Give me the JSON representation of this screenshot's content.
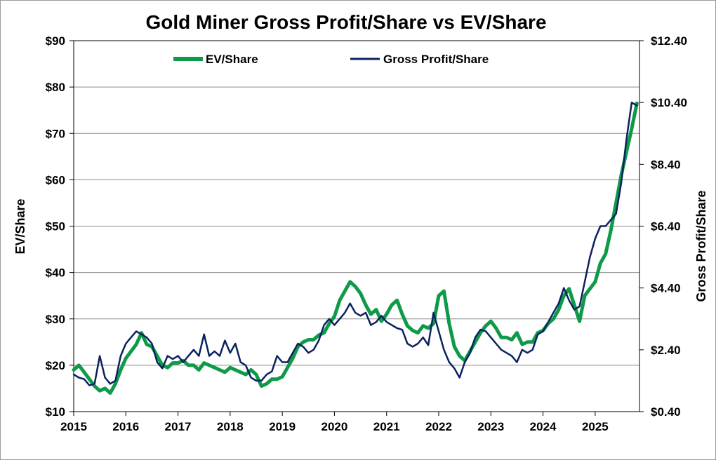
{
  "chart_data": {
    "type": "line",
    "title": "Gold Miner Gross Profit/Share vs EV/Share",
    "ylabel_left": "EV/Share",
    "ylabel_right": "Gross Profit/Share",
    "x_ticks": [
      "2015",
      "2016",
      "2017",
      "2018",
      "2019",
      "2020",
      "2021",
      "2022",
      "2023",
      "2024",
      "2025"
    ],
    "xlim": [
      2015,
      2025.85
    ],
    "y_left_ticks": [
      "$10",
      "$20",
      "$30",
      "$40",
      "$50",
      "$60",
      "$70",
      "$80",
      "$90"
    ],
    "y_left_range": [
      10,
      90
    ],
    "y_right_ticks": [
      "$0.40",
      "$2.40",
      "$4.40",
      "$6.40",
      "$8.40",
      "$10.40",
      "$12.40"
    ],
    "y_right_range": [
      0.4,
      12.4
    ],
    "grid": true,
    "legend_position": "top",
    "series": [
      {
        "name": "EV/Share",
        "axis": "left",
        "color": "#0e9a48",
        "x": [
          2015.0,
          2015.1,
          2015.2,
          2015.3,
          2015.4,
          2015.5,
          2015.6,
          2015.7,
          2015.8,
          2015.9,
          2016.0,
          2016.1,
          2016.2,
          2016.3,
          2016.4,
          2016.5,
          2016.6,
          2016.7,
          2016.8,
          2016.9,
          2017.0,
          2017.1,
          2017.2,
          2017.3,
          2017.4,
          2017.5,
          2017.6,
          2017.7,
          2017.8,
          2017.9,
          2018.0,
          2018.1,
          2018.2,
          2018.3,
          2018.4,
          2018.5,
          2018.6,
          2018.7,
          2018.8,
          2018.9,
          2019.0,
          2019.1,
          2019.2,
          2019.3,
          2019.4,
          2019.5,
          2019.6,
          2019.7,
          2019.8,
          2019.9,
          2020.0,
          2020.1,
          2020.2,
          2020.3,
          2020.4,
          2020.5,
          2020.6,
          2020.7,
          2020.8,
          2020.9,
          2021.0,
          2021.1,
          2021.2,
          2021.3,
          2021.4,
          2021.5,
          2021.6,
          2021.7,
          2021.8,
          2021.9,
          2022.0,
          2022.1,
          2022.2,
          2022.3,
          2022.4,
          2022.5,
          2022.6,
          2022.7,
          2022.8,
          2022.9,
          2023.0,
          2023.1,
          2023.2,
          2023.3,
          2023.4,
          2023.5,
          2023.6,
          2023.7,
          2023.8,
          2023.9,
          2024.0,
          2024.1,
          2024.2,
          2024.3,
          2024.4,
          2024.5,
          2024.6,
          2024.7,
          2024.8,
          2024.9,
          2025.0,
          2025.1,
          2025.2,
          2025.3,
          2025.4,
          2025.5,
          2025.6,
          2025.7,
          2025.8
        ],
        "values": [
          19,
          20,
          18.5,
          17,
          15.5,
          14.5,
          15,
          14,
          16,
          19,
          21.5,
          23,
          24.5,
          27,
          24.5,
          24,
          22,
          20,
          19.5,
          20.5,
          20.5,
          21,
          20,
          20,
          19,
          20.5,
          20,
          19.5,
          19,
          18.5,
          19.5,
          19,
          18.5,
          18,
          19,
          18,
          15.5,
          16,
          17,
          17,
          17.5,
          19.5,
          21.5,
          24,
          25,
          25.5,
          25.5,
          26.5,
          27,
          29,
          30.5,
          34,
          36,
          38,
          37,
          35.5,
          33,
          31,
          32,
          29.5,
          31,
          33,
          34,
          31,
          28.5,
          27.5,
          27,
          28.5,
          28,
          29,
          35,
          36,
          29,
          24,
          22,
          21,
          23,
          25,
          27,
          28.5,
          29.5,
          28,
          26,
          26,
          25.5,
          27,
          24.5,
          25,
          25,
          27,
          27.5,
          29,
          30,
          32,
          35,
          36.5,
          33,
          29.5,
          35,
          36.5,
          38,
          42,
          44,
          49,
          55,
          61,
          66,
          71,
          76.5
        ]
      },
      {
        "name": "Gross Profit/Share",
        "axis": "right",
        "color": "#0b2160",
        "x": [
          2015.0,
          2015.1,
          2015.2,
          2015.3,
          2015.4,
          2015.5,
          2015.6,
          2015.7,
          2015.8,
          2015.9,
          2016.0,
          2016.1,
          2016.2,
          2016.3,
          2016.4,
          2016.5,
          2016.6,
          2016.7,
          2016.8,
          2016.9,
          2017.0,
          2017.1,
          2017.2,
          2017.3,
          2017.4,
          2017.5,
          2017.6,
          2017.7,
          2017.8,
          2017.9,
          2018.0,
          2018.1,
          2018.2,
          2018.3,
          2018.4,
          2018.5,
          2018.6,
          2018.7,
          2018.8,
          2018.9,
          2019.0,
          2019.1,
          2019.2,
          2019.3,
          2019.4,
          2019.5,
          2019.6,
          2019.7,
          2019.8,
          2019.9,
          2020.0,
          2020.1,
          2020.2,
          2020.3,
          2020.4,
          2020.5,
          2020.6,
          2020.7,
          2020.8,
          2020.9,
          2021.0,
          2021.1,
          2021.2,
          2021.3,
          2021.4,
          2021.5,
          2021.6,
          2021.7,
          2021.8,
          2021.9,
          2022.0,
          2022.1,
          2022.2,
          2022.3,
          2022.4,
          2022.5,
          2022.6,
          2022.7,
          2022.8,
          2022.9,
          2023.0,
          2023.1,
          2023.2,
          2023.3,
          2023.4,
          2023.5,
          2023.6,
          2023.7,
          2023.8,
          2023.9,
          2024.0,
          2024.1,
          2024.2,
          2024.3,
          2024.4,
          2024.5,
          2024.6,
          2024.7,
          2024.8,
          2024.9,
          2025.0,
          2025.1,
          2025.2,
          2025.3,
          2025.4,
          2025.5,
          2025.6,
          2025.7,
          2025.8
        ],
        "values": [
          1.6,
          1.5,
          1.45,
          1.25,
          1.3,
          2.2,
          1.5,
          1.3,
          1.4,
          2.2,
          2.6,
          2.8,
          3.0,
          2.9,
          2.8,
          2.6,
          2.0,
          1.8,
          2.2,
          2.1,
          2.2,
          2.0,
          2.2,
          2.4,
          2.2,
          2.9,
          2.2,
          2.35,
          2.2,
          2.7,
          2.3,
          2.6,
          2.0,
          1.9,
          1.5,
          1.4,
          1.4,
          1.6,
          1.7,
          2.2,
          2.0,
          2.0,
          2.3,
          2.6,
          2.5,
          2.3,
          2.4,
          2.7,
          3.2,
          3.4,
          3.2,
          3.4,
          3.6,
          3.9,
          3.6,
          3.5,
          3.6,
          3.2,
          3.3,
          3.5,
          3.3,
          3.2,
          3.1,
          3.05,
          2.6,
          2.5,
          2.6,
          2.8,
          2.55,
          3.6,
          3.0,
          2.4,
          2.0,
          1.8,
          1.5,
          2.0,
          2.3,
          2.8,
          3.05,
          3.0,
          2.8,
          2.6,
          2.4,
          2.3,
          2.2,
          2.0,
          2.4,
          2.3,
          2.4,
          2.9,
          3.0,
          3.3,
          3.6,
          3.9,
          4.4,
          4.0,
          3.7,
          3.8,
          4.6,
          5.4,
          6.0,
          6.4,
          6.4,
          6.6,
          6.8,
          7.8,
          9.2,
          10.4,
          10.3
        ]
      }
    ]
  }
}
